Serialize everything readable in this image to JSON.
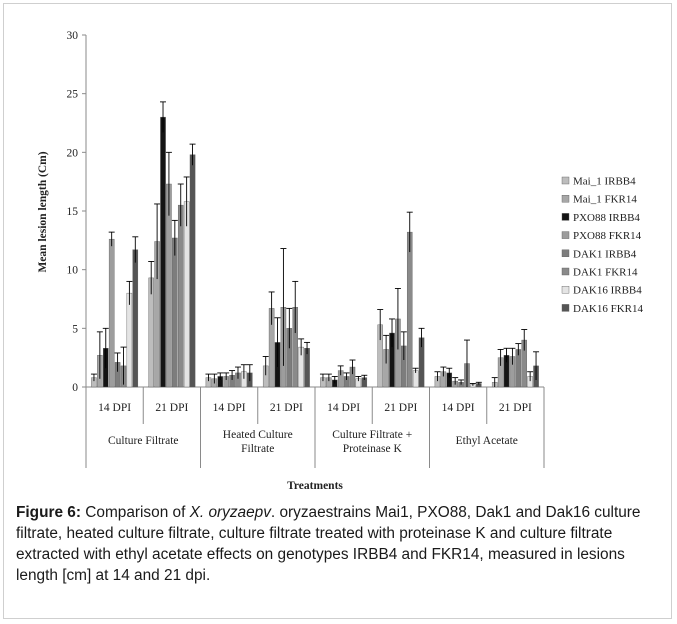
{
  "chart_data": {
    "type": "bar",
    "title": "",
    "xlabel": "Treatments",
    "ylabel": "Mean lesion length (Cm)",
    "ylim": [
      0,
      30
    ],
    "yticks": [
      0,
      5,
      10,
      15,
      20,
      25,
      30
    ],
    "grid": false,
    "legend_position": "right",
    "groups": [
      "Culture Filtrate",
      "Heated Culture Filtrate",
      "Culture Filtrate + Proteinase K",
      "Ethyl Acetate"
    ],
    "group_label_lines": [
      [
        "Culture Filtrate"
      ],
      [
        "Heated Culture",
        "Filtrate"
      ],
      [
        "Culture Filtrate +",
        "Proteinase K"
      ],
      [
        "Ethyl Acetate"
      ]
    ],
    "categories": [
      "14 DPI",
      "21 DPI",
      "14 DPI",
      "21 DPI",
      "14 DPI",
      "21 DPI",
      "14 DPI",
      "21 DPI"
    ],
    "series": [
      {
        "name": "Mai_1 IRBB4",
        "color": "#bdbdbd",
        "values": [
          0.8,
          9.3,
          0.8,
          1.8,
          0.8,
          5.3,
          0.9,
          0.4
        ],
        "errors": [
          0.3,
          1.4,
          0.3,
          0.8,
          0.3,
          1.3,
          0.4,
          0.4
        ]
      },
      {
        "name": "Mai_1 FKR14",
        "color": "#a7a7a7",
        "values": [
          2.7,
          12.4,
          0.7,
          6.7,
          0.8,
          3.2,
          1.3,
          2.5
        ],
        "errors": [
          2.0,
          3.2,
          0.4,
          1.4,
          0.3,
          1.2,
          0.4,
          0.7
        ]
      },
      {
        "name": "PXO88 IRBB4",
        "color": "#141414",
        "values": [
          3.3,
          23.0,
          0.9,
          3.8,
          0.6,
          4.6,
          1.2,
          2.7
        ],
        "errors": [
          1.7,
          1.3,
          0.3,
          2.1,
          0.3,
          1.2,
          0.4,
          0.6
        ]
      },
      {
        "name": "PXO88 FKR14",
        "color": "#9d9d9d",
        "values": [
          12.6,
          17.3,
          0.9,
          6.8,
          1.4,
          5.8,
          0.5,
          2.6
        ],
        "errors": [
          0.6,
          2.7,
          0.3,
          5.0,
          0.4,
          2.6,
          0.3,
          0.7
        ]
      },
      {
        "name": "DAK1 IRBB4",
        "color": "#7d7d7d",
        "values": [
          2.1,
          12.7,
          1.0,
          5.0,
          0.9,
          3.5,
          0.4,
          3.2
        ],
        "errors": [
          0.8,
          1.5,
          0.4,
          1.7,
          0.3,
          1.2,
          0.2,
          0.5
        ]
      },
      {
        "name": "DAK1 FKR14",
        "color": "#8a8a8a",
        "values": [
          1.8,
          15.5,
          1.2,
          6.8,
          1.7,
          13.2,
          2.0,
          4.0
        ],
        "errors": [
          1.6,
          1.8,
          0.5,
          2.2,
          0.6,
          1.7,
          2.0,
          0.9
        ]
      },
      {
        "name": "DAK16 IRBB4",
        "color": "#e4e4e4",
        "values": [
          8.0,
          15.8,
          1.3,
          3.4,
          0.7,
          1.4,
          0.2,
          0.9
        ],
        "errors": [
          1.0,
          2.1,
          0.6,
          0.7,
          0.2,
          0.2,
          0.1,
          0.4
        ]
      },
      {
        "name": "DAK16 FKR14",
        "color": "#555555",
        "values": [
          11.7,
          19.8,
          1.2,
          3.3,
          0.8,
          4.2,
          0.3,
          1.8
        ],
        "errors": [
          1.1,
          0.9,
          0.7,
          0.5,
          0.2,
          0.8,
          0.1,
          1.2
        ]
      }
    ]
  },
  "caption": {
    "label": "Figure 6:",
    "prefix": " Comparison of ",
    "species": "X. oryzaepv",
    "text": ". oryzaestrains Mai1, PXO88, Dak1 and Dak16 culture filtrate, heated culture filtrate, culture filtrate treated with proteinase K and  culture filtrate extracted with ethyl acetate effects on genotypes IRBB4 and FKR14, measured in lesions length [cm] at 14 and 21 dpi."
  }
}
